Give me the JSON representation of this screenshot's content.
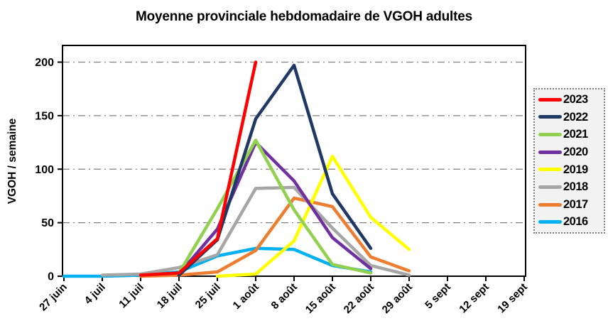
{
  "chart_data": {
    "type": "line",
    "title": "Moyenne provinciale hebdomadaire de VGOH adultes",
    "ylabel": "VGOH / semaine",
    "xlabel": "",
    "ylim": [
      0,
      200
    ],
    "yticks": [
      0,
      50,
      100,
      150,
      200
    ],
    "grid": "horizontal-dash-dot",
    "gridline_color": "#808080",
    "legend_position": "right",
    "categories": [
      "27 juin",
      "4 juil",
      "11 juil",
      "18 juil",
      "25 juil",
      "1 août",
      "8 août",
      "15 août",
      "22 août",
      "29 août",
      "5 sept",
      "12 sept",
      "19 sept"
    ],
    "series": [
      {
        "name": "2023",
        "color": "#FF0000",
        "values": [
          null,
          null,
          1,
          3,
          35,
          200,
          null,
          null,
          null,
          null,
          null,
          null,
          null
        ]
      },
      {
        "name": "2022",
        "color": "#1F3864",
        "values": [
          null,
          null,
          null,
          1,
          34,
          147,
          197,
          77,
          26,
          null,
          null,
          null,
          null
        ]
      },
      {
        "name": "2021",
        "color": "#92D050",
        "values": [
          null,
          null,
          1,
          3,
          63,
          127,
          62,
          11,
          3,
          null,
          null,
          null,
          null
        ]
      },
      {
        "name": "2020",
        "color": "#7030A0",
        "values": [
          null,
          null,
          null,
          2,
          44,
          125,
          89,
          36,
          7,
          null,
          null,
          null,
          null
        ]
      },
      {
        "name": "2019",
        "color": "#FFFF00",
        "values": [
          null,
          null,
          null,
          null,
          0,
          2,
          33,
          112,
          55,
          25,
          null,
          null,
          null
        ]
      },
      {
        "name": "2018",
        "color": "#A6A6A6",
        "values": [
          null,
          1,
          2,
          8,
          20,
          82,
          83,
          45,
          10,
          1,
          null,
          null,
          null
        ]
      },
      {
        "name": "2017",
        "color": "#ED7D31",
        "values": [
          null,
          null,
          0,
          1,
          4,
          24,
          73,
          65,
          18,
          5,
          null,
          null,
          null
        ]
      },
      {
        "name": "2016",
        "color": "#00B0F0",
        "values": [
          0,
          0,
          1,
          4,
          19,
          26,
          25,
          10,
          4,
          null,
          null,
          null,
          null
        ]
      }
    ]
  }
}
